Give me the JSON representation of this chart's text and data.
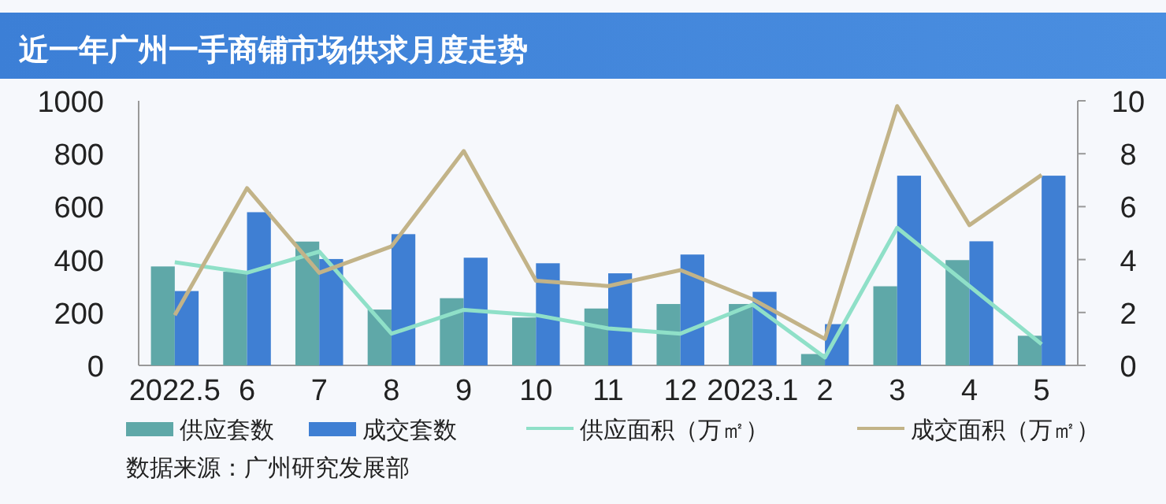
{
  "chart_data": {
    "type": "bar",
    "title": "近一年广州一手商铺市场供求月度走势",
    "categories": [
      "2022.5",
      "6",
      "7",
      "8",
      "9",
      "10",
      "11",
      "12",
      "2023.1",
      "2",
      "3",
      "4",
      "5"
    ],
    "series": [
      {
        "name": "供应套数",
        "color": "#5fa8a8",
        "values": [
          374,
          354,
          468,
          211,
          254,
          181,
          215,
          232,
          232,
          43,
          299,
          398,
          112
        ]
      },
      {
        "name": "成交套数",
        "color": "#3f7fd3",
        "values": [
          281,
          579,
          402,
          496,
          407,
          386,
          348,
          419,
          278,
          156,
          717,
          469,
          717
        ]
      },
      {
        "name": "供应面积（万㎡）",
        "type": "line",
        "axis": "y2",
        "color": "#8fe0c8",
        "values": [
          3.9,
          3.5,
          4.3,
          1.2,
          2.1,
          1.9,
          1.4,
          1.2,
          2.3,
          0.3,
          5.2,
          3.0,
          0.8
        ]
      },
      {
        "name": "成交面积（万㎡）",
        "type": "line",
        "axis": "y2",
        "color": "#c2b388",
        "values": [
          1.9,
          6.7,
          3.5,
          4.5,
          8.1,
          3.2,
          3.0,
          3.6,
          2.5,
          1.0,
          9.8,
          5.3,
          7.2
        ]
      }
    ],
    "ylim": [
      0,
      1000
    ],
    "yticks": [
      0,
      200,
      400,
      600,
      800,
      1000
    ],
    "y2lim": [
      0,
      10
    ],
    "y2ticks": [
      0,
      2,
      4,
      6,
      8,
      10
    ],
    "legend": "bottom",
    "annotations": [
      "数据来源：广州研究发展部"
    ]
  }
}
